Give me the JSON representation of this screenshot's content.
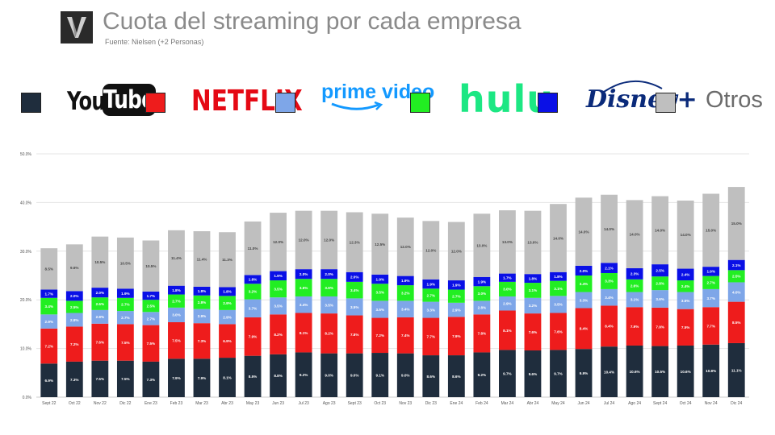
{
  "header": {
    "title": "Cuota del streaming por cada empresa",
    "source": "Fuente: Nielsen (+2 Personas)"
  },
  "legend": {
    "youtube": {
      "label_you": "You",
      "label_tube": "Tube",
      "color": "#1f2d3d"
    },
    "netflix": {
      "label": "NETFLIX",
      "color": "#ee1c1c"
    },
    "prime": {
      "label": "prime video",
      "color": "#7ea6e8"
    },
    "hulu": {
      "label": "hulu",
      "color": "#22ee22"
    },
    "disney": {
      "label": "Disney+",
      "color": "#0a10e6"
    },
    "otros": {
      "label": "Otros",
      "color": "#bfbfbf"
    }
  },
  "chart_data": {
    "type": "bar",
    "stacked": true,
    "ylim": [
      0,
      50
    ],
    "yticks": [
      "0.0%",
      "10.0%",
      "20.0%",
      "30.0%",
      "40.0%",
      "50.0%"
    ],
    "grid": true,
    "categories": [
      "Sept 22",
      "Oct 22",
      "Nov 22",
      "Dic 22",
      "Ene 23",
      "Feb 23",
      "Mar 23",
      "Abr 23",
      "May 23",
      "Jun 23",
      "Jul 23",
      "Ago 23",
      "Sept 23",
      "Oct 23",
      "Nov 23",
      "Dic 23",
      "Ene 24",
      "Feb 24",
      "Mar 24",
      "Abr 24",
      "May 24",
      "Jun 24",
      "Jul 24",
      "Ago 24",
      "Sept 24",
      "Oct 24",
      "Nov 24",
      "Dic 24"
    ],
    "series": [
      {
        "name": "YouTube",
        "color": "#1f2d3d",
        "labelColor": "#ffffff",
        "values": [
          6.9,
          7.3,
          7.5,
          7.5,
          7.3,
          7.9,
          7.9,
          8.1,
          8.5,
          8.8,
          9.2,
          9.0,
          9.0,
          9.1,
          9.0,
          8.6,
          8.6,
          9.2,
          9.7,
          9.6,
          9.7,
          9.9,
          10.4,
          10.6,
          10.5,
          10.6,
          10.8,
          11.1
        ]
      },
      {
        "name": "Netflix",
        "color": "#ee1c1c",
        "labelColor": "#ffffff",
        "values": [
          7.2,
          7.2,
          7.6,
          7.5,
          7.5,
          7.5,
          7.3,
          6.9,
          7.9,
          8.2,
          8.1,
          8.2,
          7.8,
          7.2,
          7.4,
          7.7,
          7.9,
          7.8,
          8.1,
          7.6,
          7.6,
          8.4,
          8.4,
          7.9,
          7.9,
          7.5,
          7.7,
          8.5
        ]
      },
      {
        "name": "Prime Video",
        "color": "#7ea6e8",
        "labelColor": "#ffffff",
        "values": [
          2.9,
          2.8,
          2.8,
          2.7,
          2.7,
          3.0,
          2.9,
          2.9,
          3.7,
          3.5,
          3.4,
          3.5,
          3.5,
          3.5,
          3.4,
          3.3,
          2.9,
          2.8,
          2.9,
          3.2,
          3.5,
          3.3,
          3.4,
          3.1,
          3.6,
          3.5,
          3.7,
          4.0
        ]
      },
      {
        "name": "Hulu",
        "color": "#22ee22",
        "labelColor": "#ffffff",
        "values": [
          3.4,
          2.5,
          2.6,
          2.7,
          2.5,
          2.7,
          2.8,
          2.9,
          3.2,
          3.5,
          3.6,
          3.6,
          3.4,
          3.5,
          3.2,
          2.7,
          2.7,
          3.0,
          3.0,
          3.1,
          3.1,
          3.4,
          3.3,
          2.6,
          2.8,
          2.4,
          2.7,
          2.5
        ]
      },
      {
        "name": "Disney+",
        "color": "#0a10e6",
        "labelColor": "#ffffff",
        "values": [
          1.7,
          2.0,
          2.0,
          1.9,
          1.7,
          1.8,
          1.8,
          1.8,
          1.8,
          1.9,
          2.0,
          2.0,
          2.0,
          1.9,
          1.9,
          1.9,
          1.9,
          1.9,
          1.7,
          1.8,
          1.8,
          2.0,
          2.1,
          2.3,
          2.5,
          2.4,
          1.9,
          2.1
        ]
      },
      {
        "name": "Otros",
        "color": "#bfbfbf",
        "labelColor": "#444444",
        "values": [
          8.5,
          9.6,
          10.5,
          10.5,
          10.5,
          11.4,
          11.4,
          11.3,
          11.0,
          12.0,
          12.0,
          12.0,
          12.3,
          12.5,
          12.0,
          12.0,
          12.0,
          13.0,
          13.0,
          13.0,
          14.0,
          14.0,
          14.0,
          14.0,
          14.0,
          14.0,
          15.0,
          15.0
        ]
      }
    ]
  }
}
